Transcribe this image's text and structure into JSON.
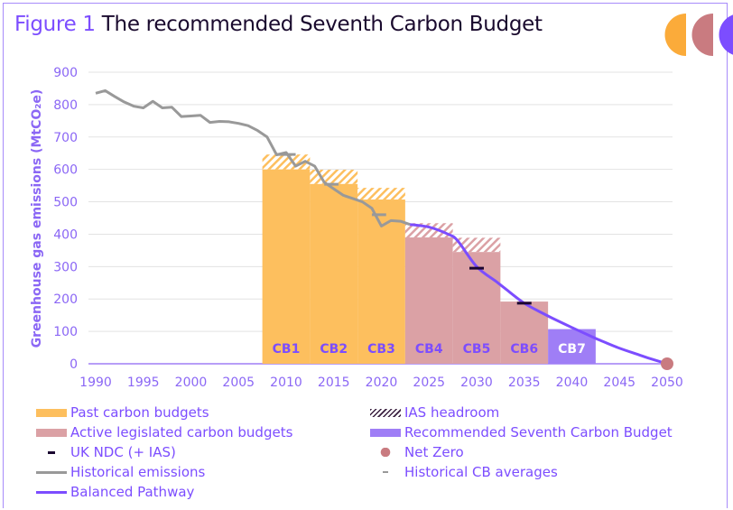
{
  "title": {
    "figure_label": "Figure 1",
    "text": "The recommended Seventh Carbon Budget"
  },
  "logo": {
    "colors": [
      "#fbab3a",
      "#c97b80",
      "#7c4dff"
    ]
  },
  "colors": {
    "past": "#fdbf5e",
    "active": "#dba1a5",
    "seventh": "#9f7ef6",
    "historical": "#999999",
    "pathway": "#7c4dff",
    "ndc": "#1a0530",
    "netzero": "#c97b80",
    "axis_text": "#8b67f5",
    "grid": "#e3e3e3"
  },
  "chart_data": {
    "type": "bar+line",
    "ylabel": "Greenhouse gas emissions (MtCO₂e)",
    "xlabel": "",
    "ylim": [
      0,
      900
    ],
    "xlim": [
      1990,
      2050
    ],
    "yticks": [
      0,
      100,
      200,
      300,
      400,
      500,
      600,
      700,
      800,
      900
    ],
    "xticks": [
      1990,
      1995,
      2000,
      2005,
      2010,
      2015,
      2020,
      2025,
      2030,
      2035,
      2040,
      2045,
      2050
    ],
    "grid": true,
    "legend_position": "bottom",
    "budgets": [
      {
        "label": "CB1",
        "start": 2008,
        "end": 2012,
        "value": 600,
        "headroom_top": 646,
        "kind": "past"
      },
      {
        "label": "CB2",
        "start": 2013,
        "end": 2017,
        "value": 555,
        "headroom_top": 599,
        "kind": "past"
      },
      {
        "label": "CB3",
        "start": 2018,
        "end": 2022,
        "value": 507,
        "headroom_top": 543,
        "kind": "past"
      },
      {
        "label": "CB4",
        "start": 2023,
        "end": 2027,
        "value": 390,
        "headroom_top": 434,
        "kind": "active"
      },
      {
        "label": "CB5",
        "start": 2028,
        "end": 2032,
        "value": 345,
        "headroom_top": 389,
        "kind": "active"
      },
      {
        "label": "CB6",
        "start": 2033,
        "end": 2037,
        "value": 192,
        "headroom_top": null,
        "kind": "active"
      },
      {
        "label": "CB7",
        "start": 2038,
        "end": 2042,
        "value": 107,
        "headroom_top": null,
        "kind": "seventh"
      }
    ],
    "historical_emissions": {
      "x": [
        1990,
        1991,
        1992,
        1993,
        1994,
        1995,
        1996,
        1997,
        1998,
        1999,
        2000,
        2001,
        2002,
        2003,
        2004,
        2005,
        2006,
        2007,
        2008,
        2009,
        2010,
        2011,
        2012,
        2013,
        2014,
        2015,
        2016,
        2017,
        2018,
        2019,
        2020,
        2021,
        2022,
        2023
      ],
      "y": [
        835,
        843,
        825,
        808,
        795,
        790,
        810,
        790,
        792,
        763,
        765,
        767,
        745,
        748,
        747,
        742,
        735,
        720,
        700,
        645,
        652,
        610,
        625,
        610,
        560,
        540,
        520,
        510,
        500,
        480,
        425,
        442,
        440,
        430
      ]
    },
    "historical_cb_averages": [
      {
        "start": 2009,
        "end": 2011,
        "value": 646
      },
      {
        "start": 2014,
        "end": 2015.5,
        "value": 554
      },
      {
        "start": 2019,
        "end": 2020.5,
        "value": 460
      }
    ],
    "balanced_pathway": {
      "x": [
        2023,
        2025,
        2027,
        2028,
        2030,
        2032,
        2033,
        2035,
        2037,
        2038,
        2040,
        2042,
        2043,
        2045,
        2047,
        2048,
        2050
      ],
      "y": [
        430,
        422,
        400,
        380,
        300,
        255,
        232,
        187,
        155,
        140,
        112,
        85,
        72,
        48,
        28,
        18,
        0
      ]
    },
    "uk_ndc": [
      {
        "year": 2030,
        "value": 295
      },
      {
        "year": 2035,
        "value": 187
      }
    ],
    "net_zero": {
      "year": 2050,
      "value": 0
    }
  },
  "legend": {
    "items": [
      {
        "label": "Past carbon budgets"
      },
      {
        "label": "IAS headroom"
      },
      {
        "label": "Active legislated carbon budgets"
      },
      {
        "label": "Recommended Seventh Carbon Budget"
      },
      {
        "label": "UK NDC (+ IAS)"
      },
      {
        "label": "Net Zero"
      },
      {
        "label": "Historical emissions"
      },
      {
        "label": "Historical CB averages"
      },
      {
        "label": "Balanced Pathway"
      }
    ]
  }
}
